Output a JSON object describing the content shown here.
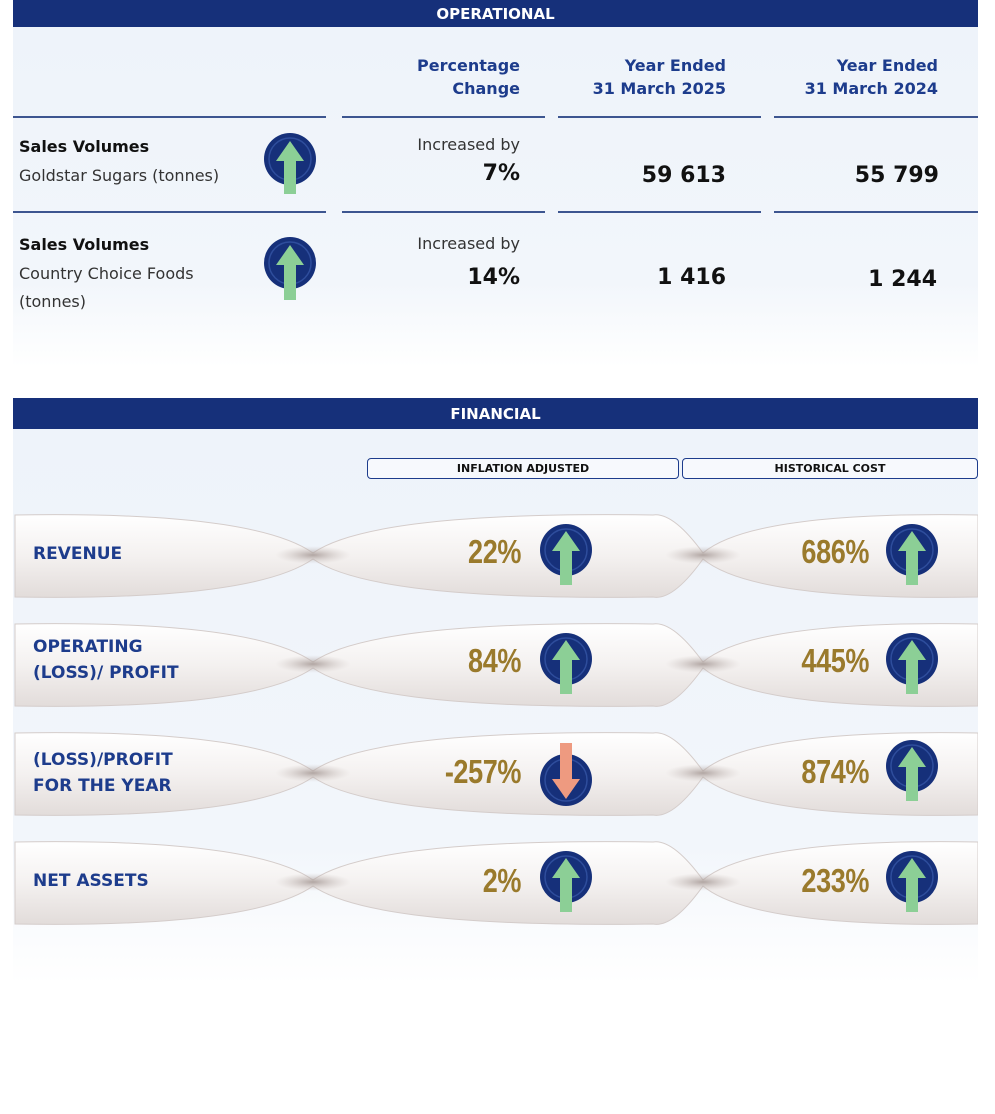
{
  "operational": {
    "title": "OPERATIONAL",
    "headers": {
      "pct_change": "Percentage\nChange",
      "year_2025": "Year Ended\n31 March 2025",
      "year_2024": "Year Ended\n31 March 2024"
    },
    "rows": [
      {
        "title": "Sales Volumes",
        "subtitle": "Goldstar Sugars (tonnes)",
        "trend": "up",
        "change_label": "Increased by",
        "change_value": "7%",
        "value_2025": "59 613",
        "value_2024": "55 799"
      },
      {
        "title": "Sales Volumes",
        "subtitle": "Country Choice Foods\n(tonnes)",
        "trend": "up",
        "change_label": "Increased by",
        "change_value": "14%",
        "value_2025": "1 416",
        "value_2024": "1 244"
      }
    ]
  },
  "financial": {
    "title": "FINANCIAL",
    "columns": {
      "inflation_adjusted": "INFLATION ADJUSTED",
      "historical_cost": "HISTORICAL COST"
    },
    "rows": [
      {
        "label": "REVENUE",
        "inflation_adjusted": "22%",
        "ia_trend": "up",
        "historical_cost": "686%",
        "hc_trend": "up"
      },
      {
        "label": "OPERATING\n(LOSS)/ PROFIT",
        "inflation_adjusted": "84%",
        "ia_trend": "up",
        "historical_cost": "445%",
        "hc_trend": "up"
      },
      {
        "label": "(LOSS)/PROFIT\nFOR THE YEAR",
        "inflation_adjusted": "-257%",
        "ia_trend": "down",
        "historical_cost": "874%",
        "hc_trend": "up"
      },
      {
        "label": "NET ASSETS",
        "inflation_adjusted": "2%",
        "ia_trend": "up",
        "historical_cost": "233%",
        "hc_trend": "up"
      }
    ]
  },
  "colors": {
    "navy": "#16307a",
    "heading_blue": "#1d3c8c",
    "gold": "#9a7a2c",
    "arrow_up_green": "#8ccf96",
    "arrow_down_salmon": "#ee9a80"
  },
  "icons": {
    "up": "arrow-up-circle-icon",
    "down": "arrow-down-circle-icon"
  }
}
